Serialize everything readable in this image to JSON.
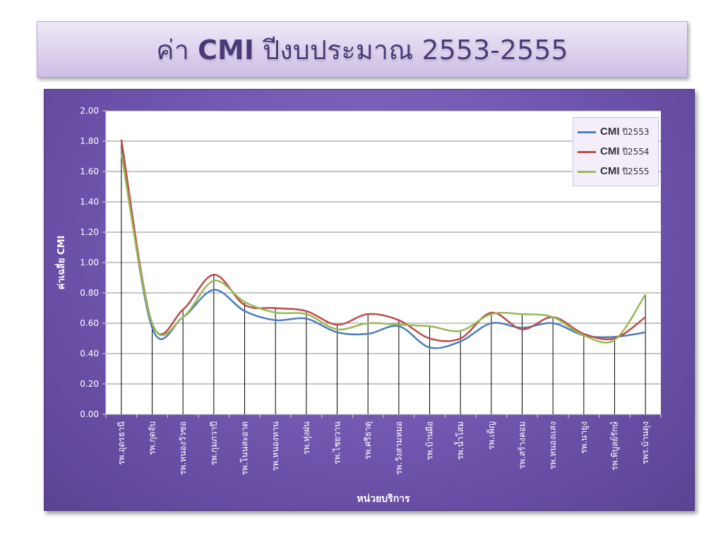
{
  "title": {
    "prefix": "ค่า",
    "bold": "CMI",
    "suffix": "ปีงบประมาณ 2553-2555"
  },
  "chart_data": {
    "type": "line",
    "xlabel": "หน่วยบริการ",
    "ylabel": "ค่าเฉลี่ย CMI",
    "ylim": [
      0,
      2
    ],
    "y_ticks": [
      "0.00",
      "0.20",
      "0.40",
      "0.60",
      "0.80",
      "1.00",
      "1.20",
      "1.40",
      "1.60",
      "1.80",
      "2.00"
    ],
    "grid": true,
    "legend_position": "top-right",
    "categories": [
      "รพ.อุดรธานี",
      "รพ.กุดจับ",
      "รพ.หนองวัวซอ",
      "รพ.กุมภวาปี",
      "รพ.โนนสะอาด",
      "รพ.หนองหาน",
      "รพ.ทุ่งฝน",
      "รพ.ไชยวาน",
      "รพ.ศรีธาตุ",
      "รพ.วังสามหมอ",
      "รพ.บ้านผือ",
      "รพ.น้ำโสม",
      "รพ.เพ็ญ",
      "รพ.สร้างคอม",
      "รพ.หนองแสง",
      "รพ.นายูง",
      "รพ.พิบูลย์รักษ์",
      "รพร.บ้านดุง"
    ],
    "series": [
      {
        "name": "CMI ปี2553",
        "name_bold": "CMI",
        "name_rest": "ปี2553",
        "color": "#4a7ebb",
        "values": [
          1.76,
          0.57,
          0.64,
          0.82,
          0.68,
          0.62,
          0.63,
          0.54,
          0.53,
          0.58,
          0.44,
          0.48,
          0.6,
          0.57,
          0.6,
          0.52,
          0.51,
          0.54
        ]
      },
      {
        "name": "CMI ปี2554",
        "name_bold": "CMI",
        "name_rest": "ปี2554",
        "color": "#be4b48",
        "values": [
          1.81,
          0.6,
          0.69,
          0.92,
          0.72,
          0.7,
          0.68,
          0.59,
          0.66,
          0.62,
          0.5,
          0.5,
          0.67,
          0.56,
          0.64,
          0.53,
          0.5,
          0.64
        ]
      },
      {
        "name": "CMI ปี2555",
        "name_bold": "CMI",
        "name_rest": "ปี2555",
        "color": "#98b954",
        "values": [
          1.72,
          0.6,
          0.64,
          0.88,
          0.74,
          0.67,
          0.66,
          0.56,
          0.6,
          0.59,
          0.58,
          0.55,
          0.66,
          0.66,
          0.64,
          0.52,
          0.49,
          0.79
        ]
      }
    ]
  }
}
